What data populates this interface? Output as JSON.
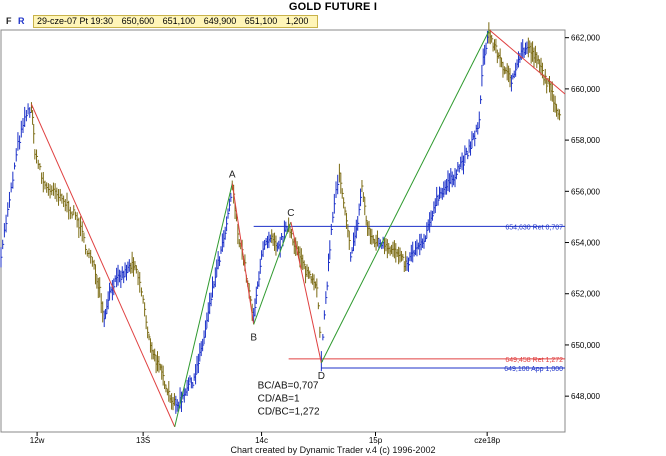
{
  "header": {
    "title": "GOLD FUTURE        I"
  },
  "infobar": {
    "flag_f": "F",
    "flag_r": "R",
    "fields": [
      "29-cze-07 Pt 19:30",
      "650,600",
      "651,100",
      "649,900",
      "651,100",
      "1,200"
    ]
  },
  "footer": {
    "credit": "Chart created by Dynamic Trader v.4 (c) 1996-2002"
  },
  "colors": {
    "up_bars": "#1c31c8",
    "down_bars": "#7a6a12",
    "red_line": "#e04040",
    "green_line": "#2f9a2f",
    "level_blue": "#1c31c8",
    "level_red": "#e04040"
  },
  "chart_data": {
    "type": "line",
    "title": "GOLD FUTURE        I",
    "y_axis": {
      "side": "right",
      "range": [
        646.6,
        662.3
      ],
      "ticks": [
        "662,000",
        "660,000",
        "658,000",
        "656,000",
        "654,000",
        "652,000",
        "650,000",
        "648,000"
      ],
      "tick_values": [
        662,
        660,
        658,
        656,
        654,
        652,
        650,
        648
      ]
    },
    "x_axis": {
      "range": [
        0,
        100
      ],
      "ticks": [
        "12w",
        "13Ś",
        "14c",
        "15p",
        "cze18p"
      ],
      "tick_values": [
        6.4,
        25.2,
        46.2,
        66.4,
        86.2
      ]
    },
    "price_path": [
      [
        0.0,
        653.6
      ],
      [
        1.5,
        655.6
      ],
      [
        3.0,
        657.8
      ],
      [
        4.5,
        659.0
      ],
      [
        5.4,
        659.3
      ],
      [
        6.0,
        657.6
      ],
      [
        7.5,
        656.3
      ],
      [
        9.0,
        656.0
      ],
      [
        10.5,
        655.7
      ],
      [
        12.0,
        655.4
      ],
      [
        13.5,
        654.9
      ],
      [
        15.0,
        653.9
      ],
      [
        16.5,
        653.0
      ],
      [
        17.5,
        652.2
      ],
      [
        18.3,
        651.0
      ],
      [
        19.0,
        651.9
      ],
      [
        20.0,
        652.4
      ],
      [
        21.0,
        652.6
      ],
      [
        22.0,
        652.8
      ],
      [
        23.0,
        653.1
      ],
      [
        24.0,
        652.9
      ],
      [
        25.2,
        651.8
      ],
      [
        26.0,
        650.4
      ],
      [
        27.0,
        649.7
      ],
      [
        28.0,
        649.1
      ],
      [
        29.0,
        648.6
      ],
      [
        30.0,
        648.0
      ],
      [
        31.0,
        647.6
      ],
      [
        32.0,
        647.9
      ],
      [
        33.0,
        648.4
      ],
      [
        34.0,
        648.6
      ],
      [
        35.0,
        649.3
      ],
      [
        36.0,
        650.3
      ],
      [
        37.0,
        651.5
      ],
      [
        38.0,
        652.7
      ],
      [
        39.0,
        653.6
      ],
      [
        40.0,
        654.6
      ],
      [
        41.0,
        656.2
      ],
      [
        42.0,
        654.4
      ],
      [
        43.0,
        653.4
      ],
      [
        44.0,
        652.0
      ],
      [
        44.8,
        651.0
      ],
      [
        45.5,
        652.3
      ],
      [
        46.2,
        653.6
      ],
      [
        47.0,
        653.9
      ],
      [
        48.0,
        654.1
      ],
      [
        49.0,
        653.7
      ],
      [
        50.0,
        654.2
      ],
      [
        51.0,
        654.7
      ],
      [
        52.0,
        654.0
      ],
      [
        53.0,
        653.4
      ],
      [
        54.0,
        652.9
      ],
      [
        55.0,
        652.7
      ],
      [
        56.0,
        652.4
      ],
      [
        56.8,
        649.4
      ],
      [
        57.6,
        651.8
      ],
      [
        58.3,
        653.8
      ],
      [
        59.1,
        655.6
      ],
      [
        60.0,
        656.6
      ],
      [
        61.0,
        655.1
      ],
      [
        62.0,
        653.6
      ],
      [
        63.0,
        654.4
      ],
      [
        64.0,
        656.2
      ],
      [
        65.0,
        654.5
      ],
      [
        66.0,
        654.1
      ],
      [
        67.0,
        654.0
      ],
      [
        68.0,
        654.0
      ],
      [
        69.0,
        653.8
      ],
      [
        70.0,
        653.6
      ],
      [
        71.0,
        653.3
      ],
      [
        72.0,
        653.1
      ],
      [
        73.0,
        653.6
      ],
      [
        74.0,
        653.8
      ],
      [
        75.0,
        654.0
      ],
      [
        76.0,
        654.7
      ],
      [
        77.0,
        655.6
      ],
      [
        78.0,
        656.0
      ],
      [
        79.0,
        656.2
      ],
      [
        80.0,
        656.5
      ],
      [
        81.0,
        656.9
      ],
      [
        82.0,
        657.2
      ],
      [
        83.0,
        657.6
      ],
      [
        84.0,
        658.2
      ],
      [
        84.8,
        658.7
      ],
      [
        85.5,
        661.2
      ],
      [
        86.5,
        662.2
      ],
      [
        87.5,
        661.6
      ],
      [
        88.5,
        661.2
      ],
      [
        89.5,
        660.6
      ],
      [
        90.5,
        660.3
      ],
      [
        91.5,
        661.1
      ],
      [
        92.5,
        661.5
      ],
      [
        93.5,
        661.6
      ],
      [
        94.5,
        661.3
      ],
      [
        95.5,
        660.9
      ],
      [
        96.5,
        660.4
      ],
      [
        97.5,
        659.9
      ],
      [
        98.5,
        659.3
      ],
      [
        99.3,
        658.9
      ]
    ],
    "wave_lines": [
      {
        "color": "red",
        "points": [
          [
            5.4,
            659.4
          ],
          [
            30.8,
            646.8
          ]
        ]
      },
      {
        "color": "green",
        "points": [
          [
            30.8,
            646.8
          ],
          [
            41.0,
            656.3
          ]
        ]
      },
      {
        "color": "red",
        "points": [
          [
            41.0,
            656.3
          ],
          [
            44.8,
            650.8
          ]
        ]
      },
      {
        "color": "green",
        "points": [
          [
            44.8,
            650.8
          ],
          [
            51.4,
            654.8
          ]
        ]
      },
      {
        "color": "red",
        "points": [
          [
            51.4,
            654.8
          ],
          [
            56.8,
            649.3
          ]
        ]
      },
      {
        "color": "green",
        "points": [
          [
            56.8,
            649.3
          ],
          [
            86.6,
            662.3
          ]
        ]
      },
      {
        "color": "red",
        "points": [
          [
            86.6,
            662.3
          ],
          [
            100.0,
            659.8
          ]
        ]
      }
    ],
    "points": [
      {
        "label": "A",
        "x": 41.0,
        "y": 656.3
      },
      {
        "label": "B",
        "x": 44.8,
        "y": 650.8
      },
      {
        "label": "C",
        "x": 51.4,
        "y": 654.8
      },
      {
        "label": "D",
        "x": 56.8,
        "y": 649.3
      }
    ],
    "levels": [
      {
        "value": 654.63,
        "label": "654,630 Ret 0,707",
        "color": "blue",
        "x_start": 44.8
      },
      {
        "value": 649.458,
        "label": "649,458 Ret 1,272",
        "color": "red",
        "x_start": 51.0
      },
      {
        "value": 649.1,
        "label": "649,100 App 1,000",
        "color": "blue",
        "x_start": 56.8
      }
    ],
    "annotations": [
      "BC/AB=0,707",
      "CD/AB=1",
      "CD/BC=1,272"
    ]
  }
}
